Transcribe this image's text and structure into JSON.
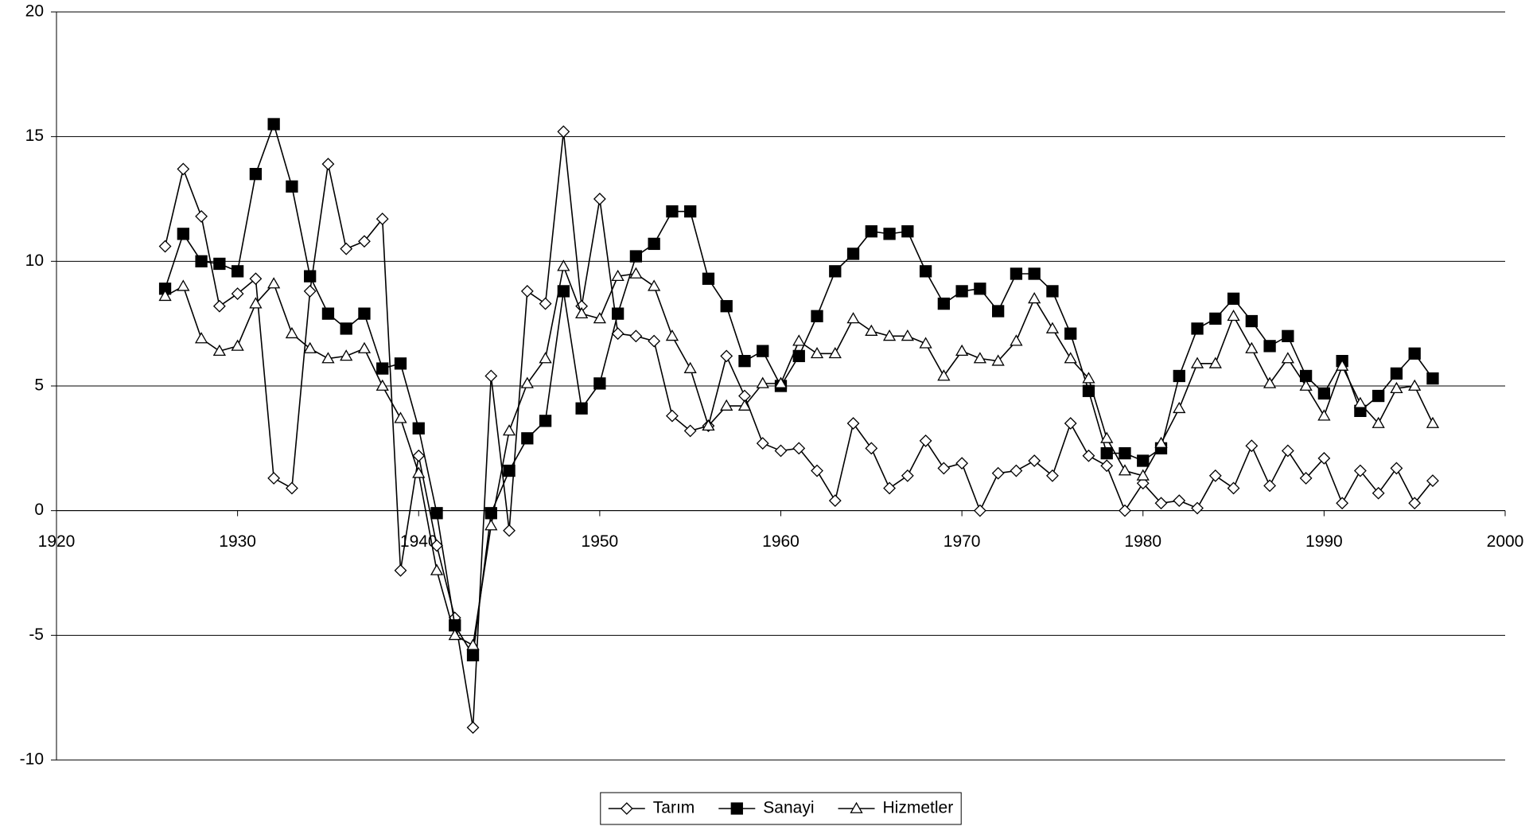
{
  "chart_data": {
    "type": "line",
    "x": [
      1926,
      1927,
      1928,
      1929,
      1930,
      1931,
      1932,
      1933,
      1934,
      1935,
      1936,
      1937,
      1938,
      1939,
      1940,
      1941,
      1942,
      1943,
      1944,
      1945,
      1946,
      1947,
      1948,
      1949,
      1950,
      1951,
      1952,
      1953,
      1954,
      1955,
      1956,
      1957,
      1958,
      1959,
      1960,
      1961,
      1962,
      1963,
      1964,
      1965,
      1966,
      1967,
      1968,
      1969,
      1970,
      1971,
      1972,
      1973,
      1974,
      1975,
      1976,
      1977,
      1978,
      1979,
      1980,
      1981,
      1982,
      1983,
      1984,
      1985,
      1986,
      1987,
      1988,
      1989,
      1990,
      1991,
      1992,
      1993,
      1994,
      1995,
      1996
    ],
    "series": [
      {
        "name": "Tarım",
        "color": "#000000",
        "marker": "diamond-open",
        "values": [
          10.6,
          13.7,
          11.8,
          8.2,
          8.7,
          9.3,
          1.3,
          0.9,
          8.8,
          13.9,
          10.5,
          10.8,
          11.7,
          -2.4,
          2.2,
          -1.4,
          -4.3,
          -8.7,
          5.4,
          -0.8,
          8.8,
          8.3,
          15.2,
          8.2,
          12.5,
          7.1,
          7.0,
          6.8,
          3.8,
          3.2,
          3.4,
          6.2,
          4.6,
          2.7,
          2.4,
          2.5,
          1.6,
          0.4,
          3.5,
          2.5,
          0.9,
          1.4,
          2.8,
          1.7,
          1.9,
          0.0,
          1.5,
          1.6,
          2.0,
          1.4,
          3.5,
          2.2,
          1.8,
          0.0,
          1.1,
          0.3,
          0.4,
          0.1,
          1.4,
          0.9,
          2.6,
          1.0,
          2.4,
          1.3,
          2.1,
          0.3,
          1.6,
          0.7,
          1.7,
          0.3,
          1.2
        ]
      },
      {
        "name": "Sanayi",
        "color": "#000000",
        "marker": "square-filled",
        "values": [
          8.9,
          11.1,
          10.0,
          9.9,
          9.6,
          13.5,
          15.5,
          13.0,
          9.4,
          7.9,
          7.3,
          7.9,
          5.7,
          5.9,
          3.3,
          -0.1,
          -4.6,
          -5.8,
          -0.1,
          1.6,
          2.9,
          3.6,
          8.8,
          4.1,
          5.1,
          7.9,
          10.2,
          10.7,
          12.0,
          12.0,
          9.3,
          8.2,
          6.0,
          6.4,
          5.0,
          6.2,
          7.8,
          9.6,
          10.3,
          11.2,
          11.1,
          11.2,
          9.6,
          8.3,
          8.8,
          8.9,
          8.0,
          9.5,
          9.5,
          8.8,
          7.1,
          4.8,
          2.3,
          2.3,
          2.0,
          2.5,
          5.4,
          7.3,
          7.7,
          8.5,
          7.6,
          6.6,
          7.0,
          5.4,
          4.7,
          6.0,
          4.0,
          4.6,
          5.5,
          6.3,
          5.3
        ]
      },
      {
        "name": "Hizmetler",
        "color": "#000000",
        "marker": "triangle-open",
        "values": [
          8.6,
          9.0,
          6.9,
          6.4,
          6.6,
          8.3,
          9.1,
          7.1,
          6.5,
          6.1,
          6.2,
          6.5,
          5.0,
          3.7,
          1.5,
          -2.4,
          -5.0,
          -5.4,
          -0.6,
          3.2,
          5.1,
          6.1,
          9.8,
          7.9,
          7.7,
          9.4,
          9.5,
          9.0,
          7.0,
          5.7,
          3.4,
          4.2,
          4.2,
          5.1,
          5.1,
          6.8,
          6.3,
          6.3,
          7.7,
          7.2,
          7.0,
          7.0,
          6.7,
          5.4,
          6.4,
          6.1,
          6.0,
          6.8,
          8.5,
          7.3,
          6.1,
          5.3,
          2.9,
          1.6,
          1.4,
          2.7,
          4.1,
          5.9,
          5.9,
          7.8,
          6.5,
          5.1,
          6.1,
          5.0,
          3.8,
          5.8,
          4.3,
          3.5,
          4.9,
          5.0,
          3.5
        ]
      }
    ],
    "xlim": [
      1920,
      2000
    ],
    "xticks": [
      1920,
      1930,
      1940,
      1950,
      1960,
      1970,
      1980,
      1990,
      2000
    ],
    "ylim": [
      -10,
      20
    ],
    "yticks": [
      -10,
      -5,
      0,
      5,
      10,
      15,
      20
    ],
    "grid": true,
    "legend": "bottom"
  }
}
